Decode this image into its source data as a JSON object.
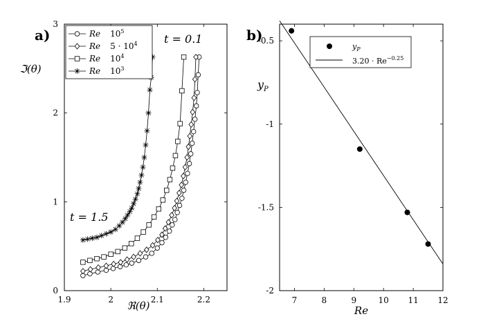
{
  "chart_data": [
    {
      "panel_label": "a)",
      "type": "line",
      "xlabel": "ℜ(θ)",
      "ylabel": "ℑ(θ)",
      "xlim": [
        1.9,
        2.25
      ],
      "ylim": [
        0,
        3
      ],
      "xticks": [
        "1.9",
        "2",
        "2.1",
        "2.2"
      ],
      "yticks": [
        "0",
        "1",
        "2",
        "3"
      ],
      "legend_position": "top-left",
      "annotations": {
        "top": "t = 0.1",
        "bottom": "t = 1.5"
      },
      "series": [
        {
          "name": "Re 10^5",
          "legend_var": "Re",
          "legend_val": "10",
          "legend_exp": "5",
          "marker": "circle",
          "x": [
            1.94,
            1.955,
            1.972,
            1.99,
            2.005,
            2.02,
            2.033,
            2.045,
            2.06,
            2.075,
            2.088,
            2.1,
            2.11,
            2.118,
            2.126,
            2.132,
            2.138,
            2.143,
            2.148,
            2.153,
            2.157,
            2.161,
            2.165,
            2.169,
            2.172,
            2.175,
            2.178,
            2.181,
            2.184,
            2.186,
            2.188,
            2.19
          ],
          "y": [
            0.17,
            0.19,
            0.21,
            0.23,
            0.25,
            0.27,
            0.29,
            0.31,
            0.34,
            0.38,
            0.42,
            0.48,
            0.54,
            0.6,
            0.67,
            0.74,
            0.8,
            0.88,
            0.96,
            1.04,
            1.13,
            1.22,
            1.32,
            1.43,
            1.54,
            1.66,
            1.79,
            1.93,
            2.08,
            2.23,
            2.43,
            2.63
          ]
        },
        {
          "name": "Re 5·10^4",
          "legend_var": "Re",
          "legend_val": "5 · 10",
          "legend_exp": "4",
          "marker": "diamond",
          "x": [
            1.94,
            1.956,
            1.973,
            1.99,
            2.006,
            2.021,
            2.035,
            2.049,
            2.063,
            2.077,
            2.09,
            2.101,
            2.11,
            2.117,
            2.124,
            2.131,
            2.137,
            2.142,
            2.147,
            2.152,
            2.156,
            2.16,
            2.164,
            2.167,
            2.17,
            2.173,
            2.176,
            2.179,
            2.181,
            2.183
          ],
          "y": [
            0.22,
            0.24,
            0.26,
            0.28,
            0.3,
            0.32,
            0.35,
            0.38,
            0.42,
            0.46,
            0.51,
            0.57,
            0.63,
            0.7,
            0.77,
            0.85,
            0.93,
            1.01,
            1.1,
            1.19,
            1.29,
            1.39,
            1.5,
            1.62,
            1.74,
            1.87,
            2.01,
            2.17,
            2.38,
            2.63
          ]
        },
        {
          "name": "Re 10^4",
          "legend_var": "Re",
          "legend_val": "10",
          "legend_exp": "4",
          "marker": "square",
          "x": [
            1.94,
            1.955,
            1.97,
            1.985,
            2.0,
            2.015,
            2.03,
            2.044,
            2.057,
            2.07,
            2.082,
            2.093,
            2.103,
            2.112,
            2.12,
            2.127,
            2.133,
            2.139,
            2.144,
            2.149,
            2.153,
            2.157
          ],
          "y": [
            0.32,
            0.34,
            0.36,
            0.38,
            0.41,
            0.44,
            0.48,
            0.53,
            0.59,
            0.66,
            0.74,
            0.83,
            0.92,
            1.02,
            1.13,
            1.25,
            1.38,
            1.52,
            1.68,
            1.88,
            2.25,
            2.63
          ]
        },
        {
          "name": "Re 10^3",
          "legend_var": "Re",
          "legend_val": "10",
          "legend_exp": "3",
          "marker": "star",
          "x": [
            1.94,
            1.95,
            1.96,
            1.97,
            1.98,
            1.99,
            2.0,
            2.01,
            2.018,
            2.025,
            2.031,
            2.036,
            2.041,
            2.045,
            2.049,
            2.053,
            2.057,
            2.06,
            2.063,
            2.066,
            2.069,
            2.072,
            2.075,
            2.078,
            2.081,
            2.084,
            2.087,
            2.09
          ],
          "y": [
            0.57,
            0.58,
            0.59,
            0.6,
            0.62,
            0.64,
            0.66,
            0.69,
            0.73,
            0.77,
            0.81,
            0.85,
            0.89,
            0.93,
            0.98,
            1.03,
            1.09,
            1.15,
            1.22,
            1.3,
            1.39,
            1.5,
            1.64,
            1.8,
            2.0,
            2.26,
            2.4,
            2.63
          ]
        }
      ]
    },
    {
      "panel_label": "b)",
      "type": "scatter",
      "xlabel": "Re",
      "ylabel": "y_P",
      "xlim": [
        6.5,
        12
      ],
      "ylim": [
        -2,
        -0.4
      ],
      "xticks": [
        "7",
        "8",
        "9",
        "10",
        "11",
        "12"
      ],
      "yticks": [
        "-0.5",
        "-1",
        "-1.5",
        "-2"
      ],
      "legend_position": "top-center",
      "points": {
        "name": "y_P",
        "x": [
          6.9,
          9.2,
          10.8,
          11.5
        ],
        "y": [
          -0.44,
          -1.15,
          -1.53,
          -1.72
        ]
      },
      "fit": {
        "label_base": "3.20 · Re",
        "label_exp": "−0.25",
        "x": [
          6.5,
          12
        ],
        "y": [
          -0.38,
          -1.84
        ]
      }
    }
  ]
}
